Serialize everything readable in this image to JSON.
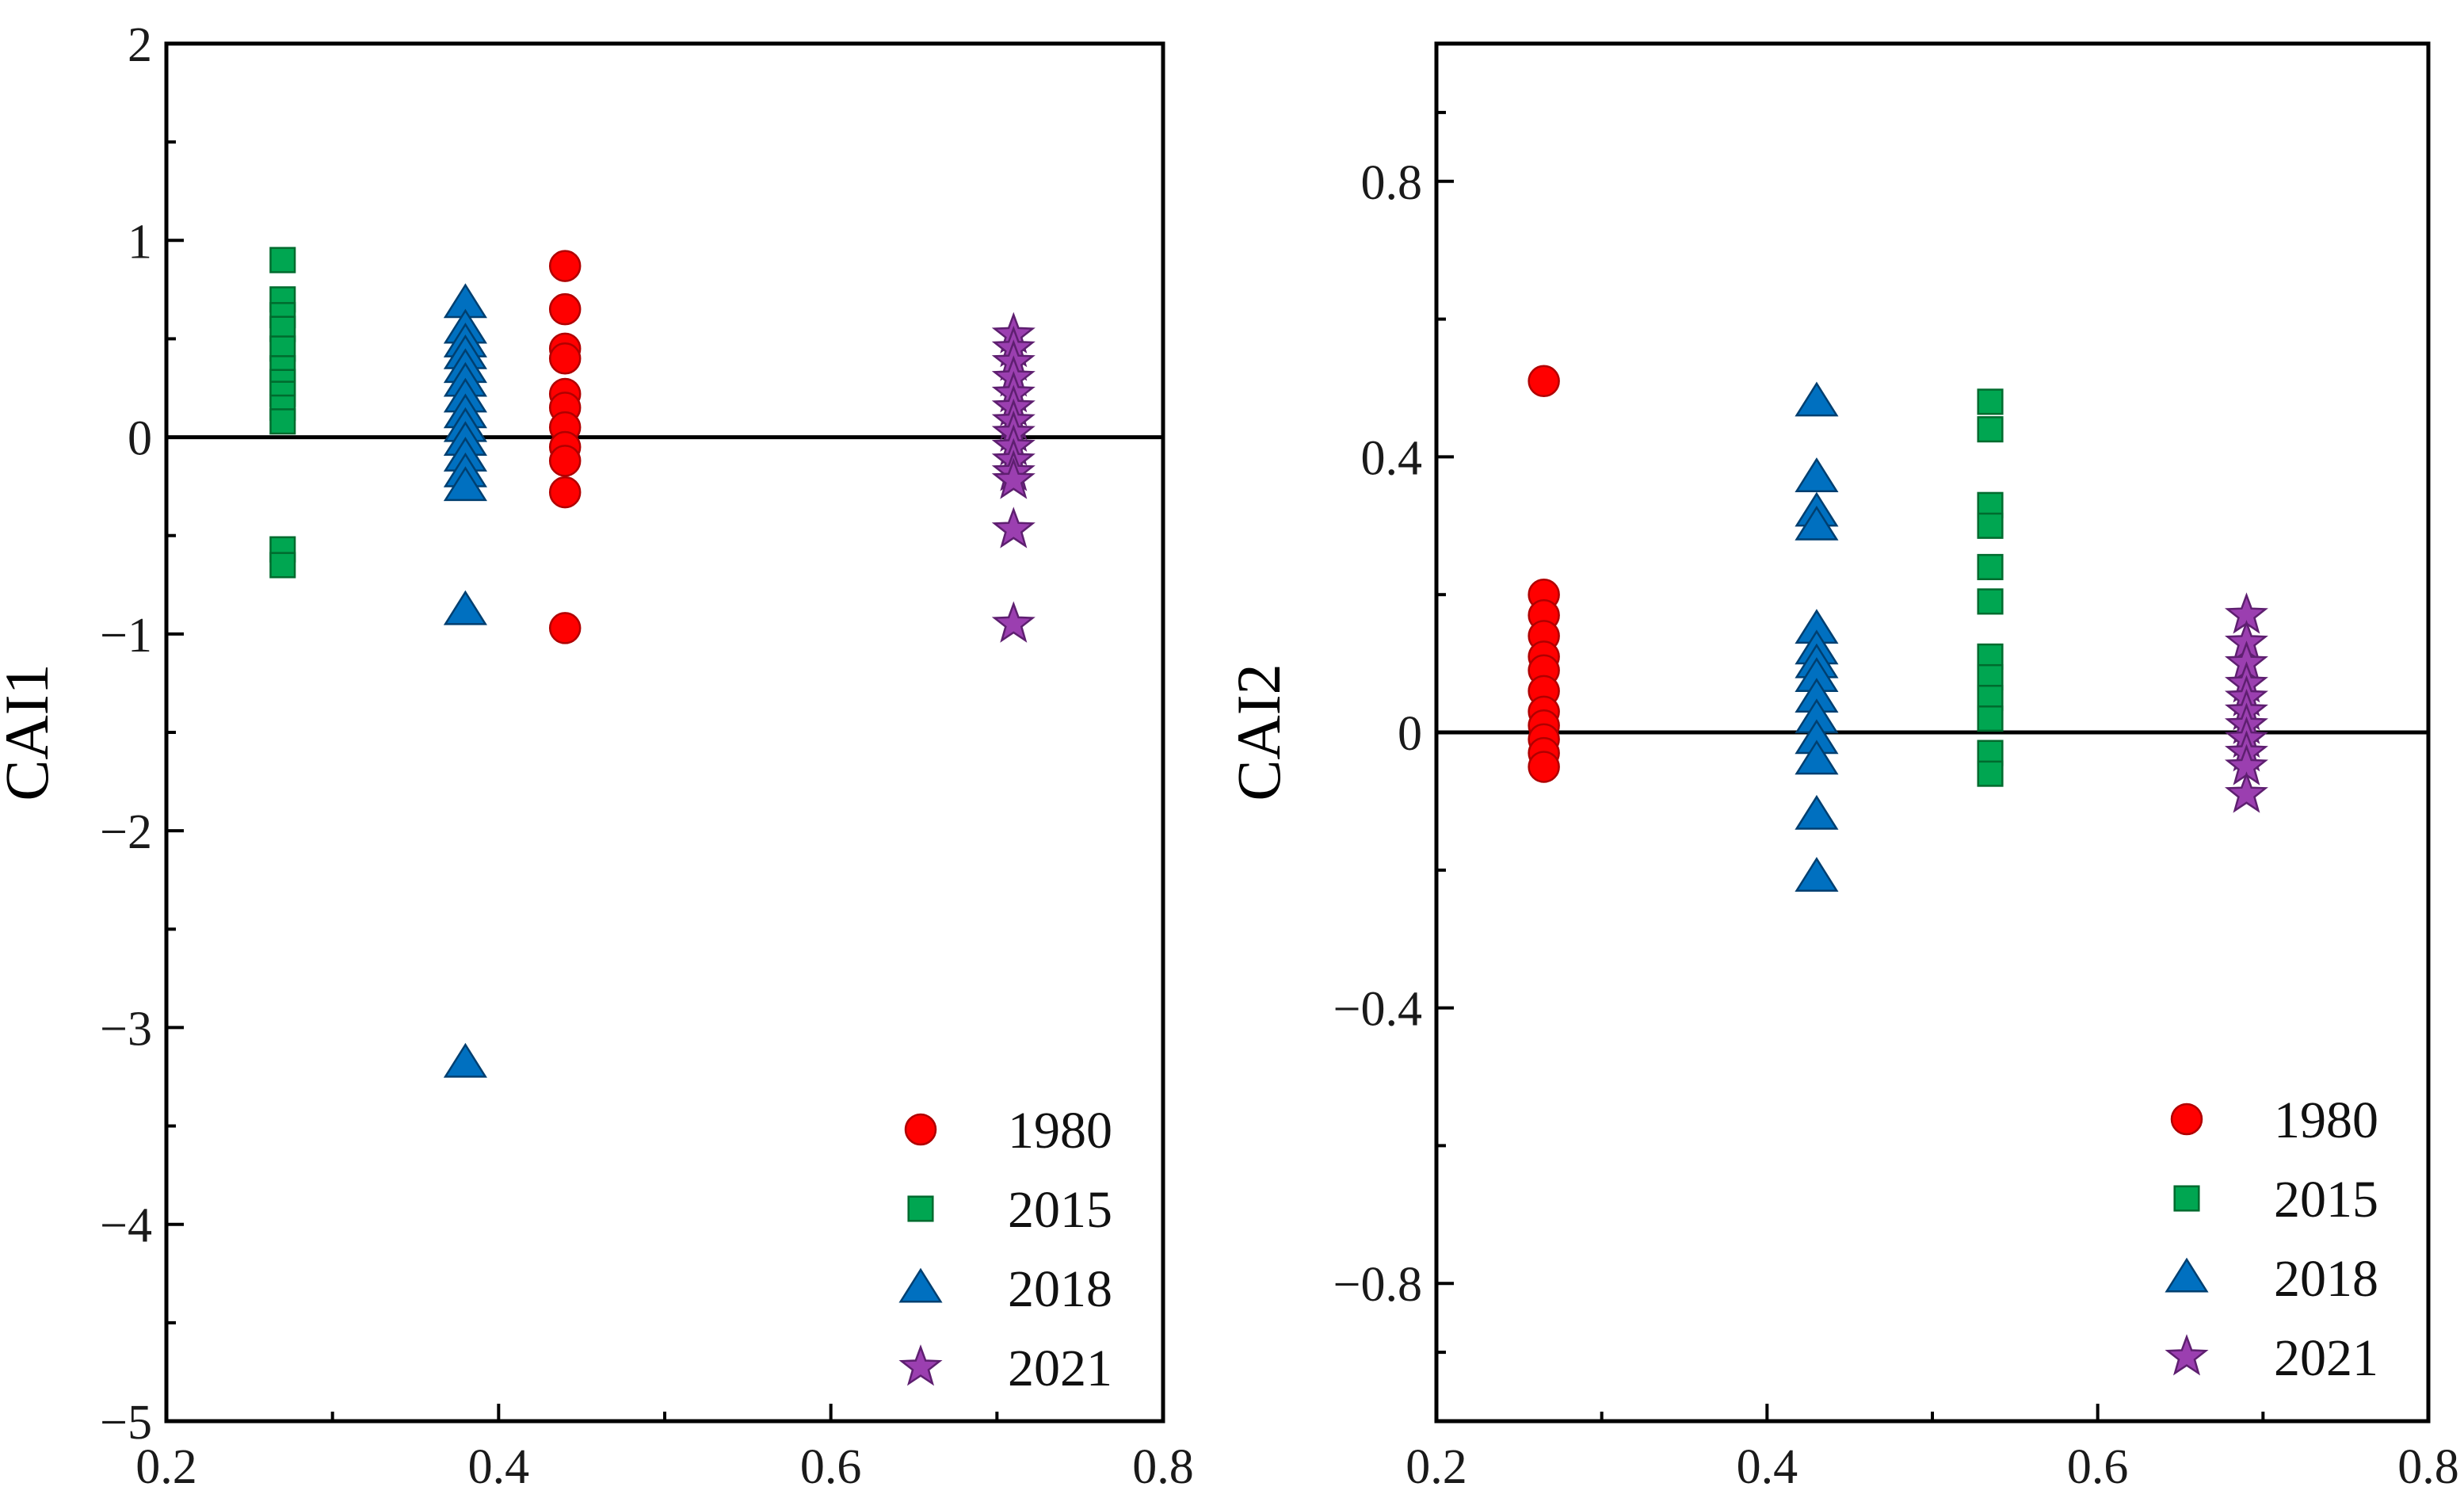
{
  "chart_data": [
    {
      "type": "scatter",
      "title": "",
      "xlabel": "",
      "ylabel": "CAI1",
      "xlim": [
        0.2,
        0.8
      ],
      "ylim": [
        -5,
        2
      ],
      "xticks": [
        0.2,
        0.4,
        0.6,
        0.8
      ],
      "xtick_labels": [
        "0.2",
        "0.4",
        "0.6",
        "0.8"
      ],
      "yticks": [
        2,
        1,
        0,
        -1,
        -2,
        -3,
        -4,
        -5
      ],
      "ytick_labels": [
        "2",
        "1",
        "0",
        "−1",
        "−2",
        "−3",
        "−4",
        "−5"
      ],
      "reference_line_y": 0,
      "legend_position": "bottom-right",
      "series": [
        {
          "name": "1980",
          "marker": "circle",
          "color": "#ff0000",
          "edge": "#b00000",
          "points": [
            [
              0.44,
              0.87
            ],
            [
              0.44,
              0.65
            ],
            [
              0.44,
              0.45
            ],
            [
              0.44,
              0.4
            ],
            [
              0.44,
              0.22
            ],
            [
              0.44,
              0.15
            ],
            [
              0.44,
              0.05
            ],
            [
              0.44,
              -0.05
            ],
            [
              0.44,
              -0.12
            ],
            [
              0.44,
              -0.28
            ],
            [
              0.44,
              -0.97
            ]
          ]
        },
        {
          "name": "2015",
          "marker": "square",
          "color": "#00a651",
          "edge": "#006b2e",
          "points": [
            [
              0.27,
              0.9
            ],
            [
              0.27,
              0.7
            ],
            [
              0.27,
              0.62
            ],
            [
              0.27,
              0.55
            ],
            [
              0.27,
              0.45
            ],
            [
              0.27,
              0.35
            ],
            [
              0.27,
              0.28
            ],
            [
              0.27,
              0.22
            ],
            [
              0.27,
              0.15
            ],
            [
              0.27,
              0.08
            ],
            [
              0.27,
              -0.57
            ],
            [
              0.27,
              -0.65
            ]
          ]
        },
        {
          "name": "2018",
          "marker": "triangle",
          "color": "#0070c0",
          "edge": "#003f70",
          "points": [
            [
              0.38,
              0.68
            ],
            [
              0.38,
              0.55
            ],
            [
              0.38,
              0.48
            ],
            [
              0.38,
              0.42
            ],
            [
              0.38,
              0.35
            ],
            [
              0.38,
              0.28
            ],
            [
              0.38,
              0.2
            ],
            [
              0.38,
              0.12
            ],
            [
              0.38,
              0.05
            ],
            [
              0.38,
              -0.02
            ],
            [
              0.38,
              -0.1
            ],
            [
              0.38,
              -0.18
            ],
            [
              0.38,
              -0.25
            ],
            [
              0.38,
              -0.88
            ],
            [
              0.38,
              -3.18
            ]
          ]
        },
        {
          "name": "2021",
          "marker": "star",
          "color": "#9b3fb0",
          "edge": "#5e1f70",
          "points": [
            [
              0.71,
              0.52
            ],
            [
              0.71,
              0.45
            ],
            [
              0.71,
              0.38
            ],
            [
              0.71,
              0.3
            ],
            [
              0.71,
              0.22
            ],
            [
              0.71,
              0.15
            ],
            [
              0.71,
              0.08
            ],
            [
              0.71,
              0.02
            ],
            [
              0.71,
              -0.05
            ],
            [
              0.71,
              -0.12
            ],
            [
              0.71,
              -0.18
            ],
            [
              0.71,
              -0.22
            ],
            [
              0.71,
              -0.47
            ],
            [
              0.71,
              -0.95
            ]
          ]
        }
      ]
    },
    {
      "type": "scatter",
      "title": "",
      "xlabel": "",
      "ylabel": "CAI2",
      "xlim": [
        0.2,
        0.8
      ],
      "ylim": [
        -1,
        1
      ],
      "xticks": [
        0.2,
        0.4,
        0.6,
        0.8
      ],
      "xtick_labels": [
        "0.2",
        "0.4",
        "0.6",
        "0.8"
      ],
      "yticks": [
        0.8,
        0.4,
        0,
        -0.4,
        -0.8
      ],
      "ytick_labels": [
        "0.8",
        "0.4",
        "0",
        "−0.4",
        "−0.8"
      ],
      "reference_line_y": 0,
      "legend_position": "bottom-right",
      "series": [
        {
          "name": "1980",
          "marker": "circle",
          "color": "#ff0000",
          "edge": "#b00000",
          "points": [
            [
              0.265,
              0.51
            ],
            [
              0.265,
              0.2
            ],
            [
              0.265,
              0.17
            ],
            [
              0.265,
              0.14
            ],
            [
              0.265,
              0.11
            ],
            [
              0.265,
              0.09
            ],
            [
              0.265,
              0.06
            ],
            [
              0.265,
              0.03
            ],
            [
              0.265,
              0.01
            ],
            [
              0.265,
              -0.01
            ],
            [
              0.265,
              -0.03
            ],
            [
              0.265,
              -0.05
            ]
          ]
        },
        {
          "name": "2015",
          "marker": "square",
          "color": "#00a651",
          "edge": "#006b2e",
          "points": [
            [
              0.535,
              0.48
            ],
            [
              0.535,
              0.44
            ],
            [
              0.535,
              0.33
            ],
            [
              0.535,
              0.3
            ],
            [
              0.535,
              0.24
            ],
            [
              0.535,
              0.19
            ],
            [
              0.535,
              0.11
            ],
            [
              0.535,
              0.08
            ],
            [
              0.535,
              0.05
            ],
            [
              0.535,
              0.02
            ],
            [
              0.535,
              -0.03
            ],
            [
              0.535,
              -0.06
            ]
          ]
        },
        {
          "name": "2018",
          "marker": "triangle",
          "color": "#0070c0",
          "edge": "#003f70",
          "points": [
            [
              0.43,
              0.48
            ],
            [
              0.43,
              0.37
            ],
            [
              0.43,
              0.32
            ],
            [
              0.43,
              0.3
            ],
            [
              0.43,
              0.15
            ],
            [
              0.43,
              0.12
            ],
            [
              0.43,
              0.1
            ],
            [
              0.43,
              0.08
            ],
            [
              0.43,
              0.05
            ],
            [
              0.43,
              0.02
            ],
            [
              0.43,
              -0.01
            ],
            [
              0.43,
              -0.04
            ],
            [
              0.43,
              -0.12
            ],
            [
              0.43,
              -0.21
            ]
          ]
        },
        {
          "name": "2021",
          "marker": "star",
          "color": "#9b3fb0",
          "edge": "#5e1f70",
          "points": [
            [
              0.69,
              0.17
            ],
            [
              0.69,
              0.13
            ],
            [
              0.69,
              0.1
            ],
            [
              0.69,
              0.07
            ],
            [
              0.69,
              0.05
            ],
            [
              0.69,
              0.03
            ],
            [
              0.69,
              0.01
            ],
            [
              0.69,
              -0.01
            ],
            [
              0.69,
              -0.03
            ],
            [
              0.69,
              -0.05
            ],
            [
              0.69,
              -0.09
            ]
          ]
        }
      ]
    }
  ]
}
